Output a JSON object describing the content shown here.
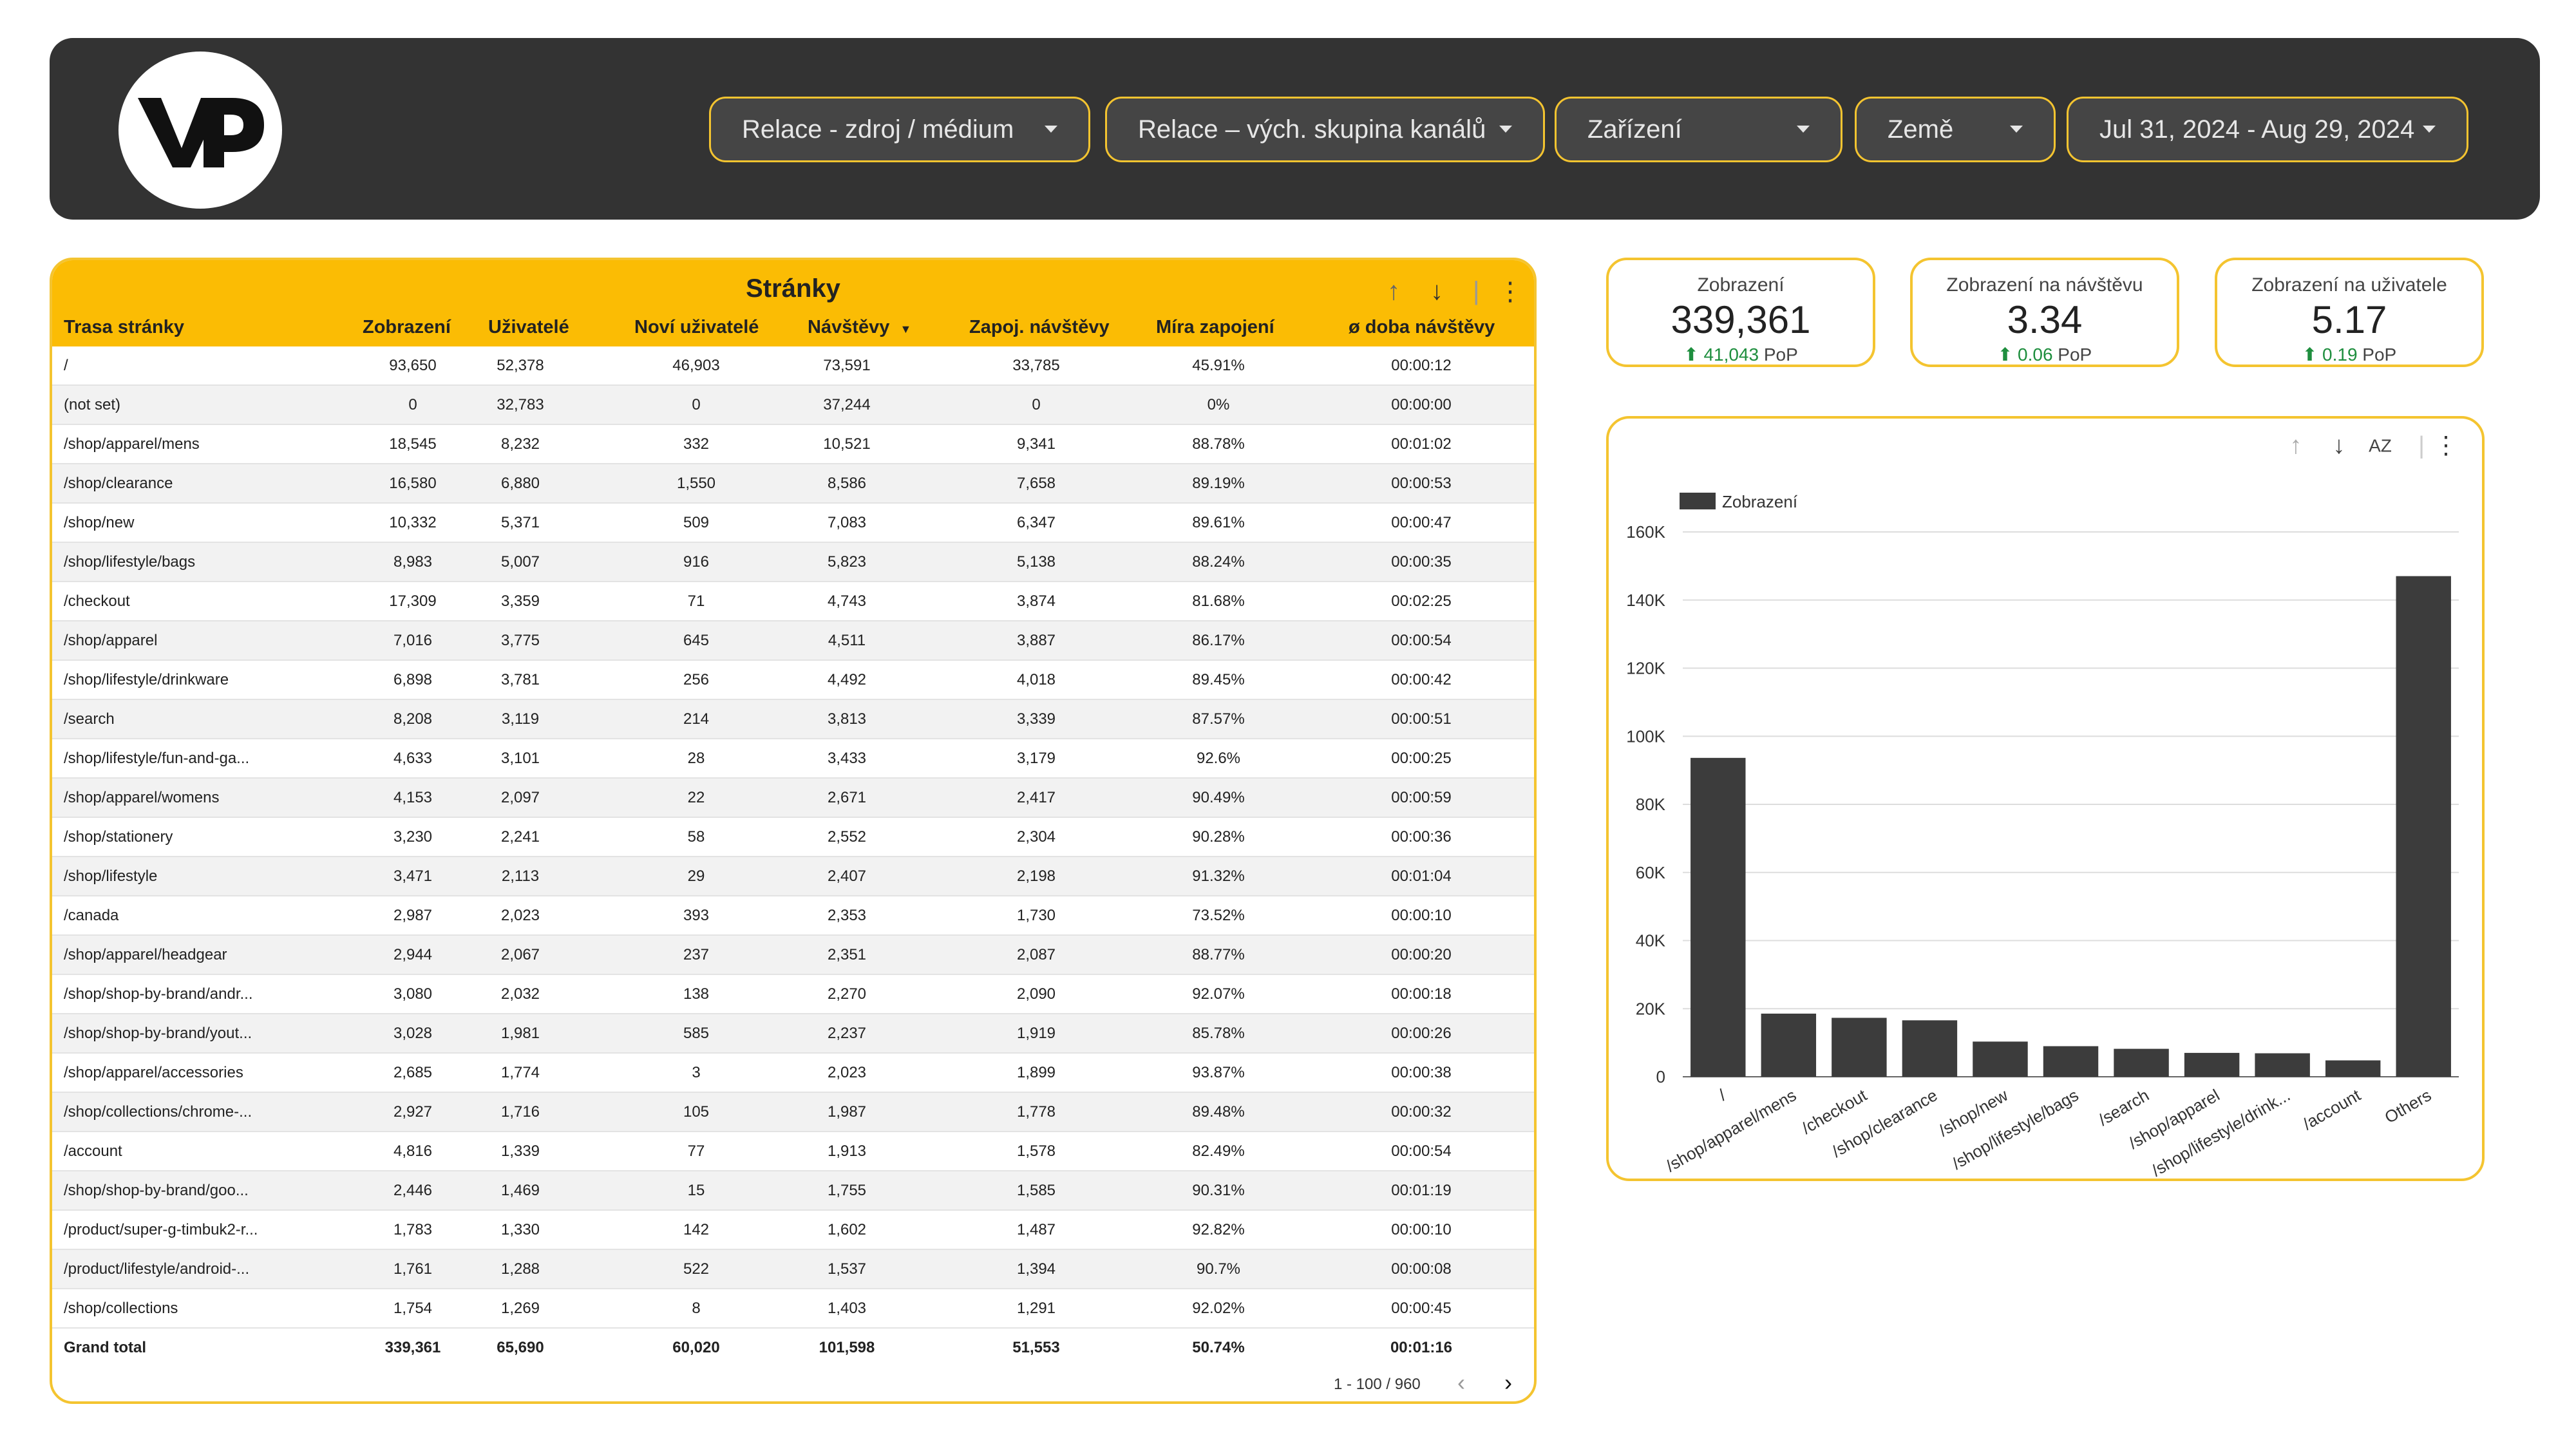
{
  "colors": {
    "header_bg": "#333333",
    "accent": "#f4c430",
    "table_header_bg": "#fbbc04",
    "bar": "#3c3c3c",
    "positive": "#1e8e3e"
  },
  "logo": {
    "text": "VP"
  },
  "filters": [
    {
      "label": "Relace - zdroj / médium"
    },
    {
      "label": "Relace – vých. skupina kanálů"
    },
    {
      "label": "Zařízení"
    },
    {
      "label": "Země"
    },
    {
      "label": "Jul 31, 2024 - Aug 29, 2024"
    }
  ],
  "table": {
    "title": "Stránky",
    "icons": {
      "sort_up": "arrow-up-icon",
      "sort_down": "arrow-down-icon",
      "more": "more-vert-icon",
      "sort_indicator": "caret-down-icon"
    },
    "columns": [
      "Trasa stránky",
      "Zobrazení",
      "Uživatelé",
      "Noví uživatelé",
      "Návštěvy",
      "Zapoj. návštěvy",
      "Míra zapojení",
      "ø doba návštěvy"
    ],
    "rows": [
      [
        "/",
        "93,650",
        "52,378",
        "46,903",
        "73,591",
        "33,785",
        "45.91%",
        "00:00:12"
      ],
      [
        "(not set)",
        "0",
        "32,783",
        "0",
        "37,244",
        "0",
        "0%",
        "00:00:00"
      ],
      [
        "/shop/apparel/mens",
        "18,545",
        "8,232",
        "332",
        "10,521",
        "9,341",
        "88.78%",
        "00:01:02"
      ],
      [
        "/shop/clearance",
        "16,580",
        "6,880",
        "1,550",
        "8,586",
        "7,658",
        "89.19%",
        "00:00:53"
      ],
      [
        "/shop/new",
        "10,332",
        "5,371",
        "509",
        "7,083",
        "6,347",
        "89.61%",
        "00:00:47"
      ],
      [
        "/shop/lifestyle/bags",
        "8,983",
        "5,007",
        "916",
        "5,823",
        "5,138",
        "88.24%",
        "00:00:35"
      ],
      [
        "/checkout",
        "17,309",
        "3,359",
        "71",
        "4,743",
        "3,874",
        "81.68%",
        "00:02:25"
      ],
      [
        "/shop/apparel",
        "7,016",
        "3,775",
        "645",
        "4,511",
        "3,887",
        "86.17%",
        "00:00:54"
      ],
      [
        "/shop/lifestyle/drinkware",
        "6,898",
        "3,781",
        "256",
        "4,492",
        "4,018",
        "89.45%",
        "00:00:42"
      ],
      [
        "/search",
        "8,208",
        "3,119",
        "214",
        "3,813",
        "3,339",
        "87.57%",
        "00:00:51"
      ],
      [
        "/shop/lifestyle/fun-and-ga...",
        "4,633",
        "3,101",
        "28",
        "3,433",
        "3,179",
        "92.6%",
        "00:00:25"
      ],
      [
        "/shop/apparel/womens",
        "4,153",
        "2,097",
        "22",
        "2,671",
        "2,417",
        "90.49%",
        "00:00:59"
      ],
      [
        "/shop/stationery",
        "3,230",
        "2,241",
        "58",
        "2,552",
        "2,304",
        "90.28%",
        "00:00:36"
      ],
      [
        "/shop/lifestyle",
        "3,471",
        "2,113",
        "29",
        "2,407",
        "2,198",
        "91.32%",
        "00:01:04"
      ],
      [
        "/canada",
        "2,987",
        "2,023",
        "393",
        "2,353",
        "1,730",
        "73.52%",
        "00:00:10"
      ],
      [
        "/shop/apparel/headgear",
        "2,944",
        "2,067",
        "237",
        "2,351",
        "2,087",
        "88.77%",
        "00:00:20"
      ],
      [
        "/shop/shop-by-brand/andr...",
        "3,080",
        "2,032",
        "138",
        "2,270",
        "2,090",
        "92.07%",
        "00:00:18"
      ],
      [
        "/shop/shop-by-brand/yout...",
        "3,028",
        "1,981",
        "585",
        "2,237",
        "1,919",
        "85.78%",
        "00:00:26"
      ],
      [
        "/shop/apparel/accessories",
        "2,685",
        "1,774",
        "3",
        "2,023",
        "1,899",
        "93.87%",
        "00:00:38"
      ],
      [
        "/shop/collections/chrome-...",
        "2,927",
        "1,716",
        "105",
        "1,987",
        "1,778",
        "89.48%",
        "00:00:32"
      ],
      [
        "/account",
        "4,816",
        "1,339",
        "77",
        "1,913",
        "1,578",
        "82.49%",
        "00:00:54"
      ],
      [
        "/shop/shop-by-brand/goo...",
        "2,446",
        "1,469",
        "15",
        "1,755",
        "1,585",
        "90.31%",
        "00:01:19"
      ],
      [
        "/product/super-g-timbuk2-r...",
        "1,783",
        "1,330",
        "142",
        "1,602",
        "1,487",
        "92.82%",
        "00:00:10"
      ],
      [
        "/product/lifestyle/android-...",
        "1,761",
        "1,288",
        "522",
        "1,537",
        "1,394",
        "90.7%",
        "00:00:08"
      ],
      [
        "/shop/collections",
        "1,754",
        "1,269",
        "8",
        "1,403",
        "1,291",
        "92.02%",
        "00:00:45"
      ]
    ],
    "total": [
      "Grand total",
      "339,361",
      "65,690",
      "60,020",
      "101,598",
      "51,553",
      "50.74%",
      "00:01:16"
    ],
    "pager": {
      "range": "1 - 100 / 960",
      "prev_icon": "chevron-left-icon",
      "next_icon": "chevron-right-icon"
    }
  },
  "kpis": [
    {
      "label": "Zobrazení",
      "value": "339,361",
      "delta": "41,043",
      "suffix": "PoP"
    },
    {
      "label": "Zobrazení na návštěvu",
      "value": "3.34",
      "delta": "0.06",
      "suffix": "PoP"
    },
    {
      "label": "Zobrazení na uživatele",
      "value": "5.17",
      "delta": "0.19",
      "suffix": "PoP"
    }
  ],
  "chart_data": {
    "type": "bar",
    "categories": [
      "/",
      "/shop/apparel/mens",
      "/checkout",
      "/shop/clearance",
      "/shop/new",
      "/shop/lifestyle/bags",
      "/search",
      "/shop/apparel",
      "/shop/lifestyle/drink...",
      "/account",
      "Others"
    ],
    "series": [
      {
        "name": "Zobrazení",
        "values": [
          93650,
          18545,
          17309,
          16580,
          10332,
          8983,
          8208,
          7016,
          6898,
          4816,
          147024
        ]
      }
    ],
    "yticks": [
      "0",
      "20K",
      "40K",
      "60K",
      "80K",
      "100K",
      "120K",
      "140K",
      "160K"
    ],
    "ylim": [
      0,
      160000
    ],
    "grid": true,
    "legend": "top-left"
  }
}
